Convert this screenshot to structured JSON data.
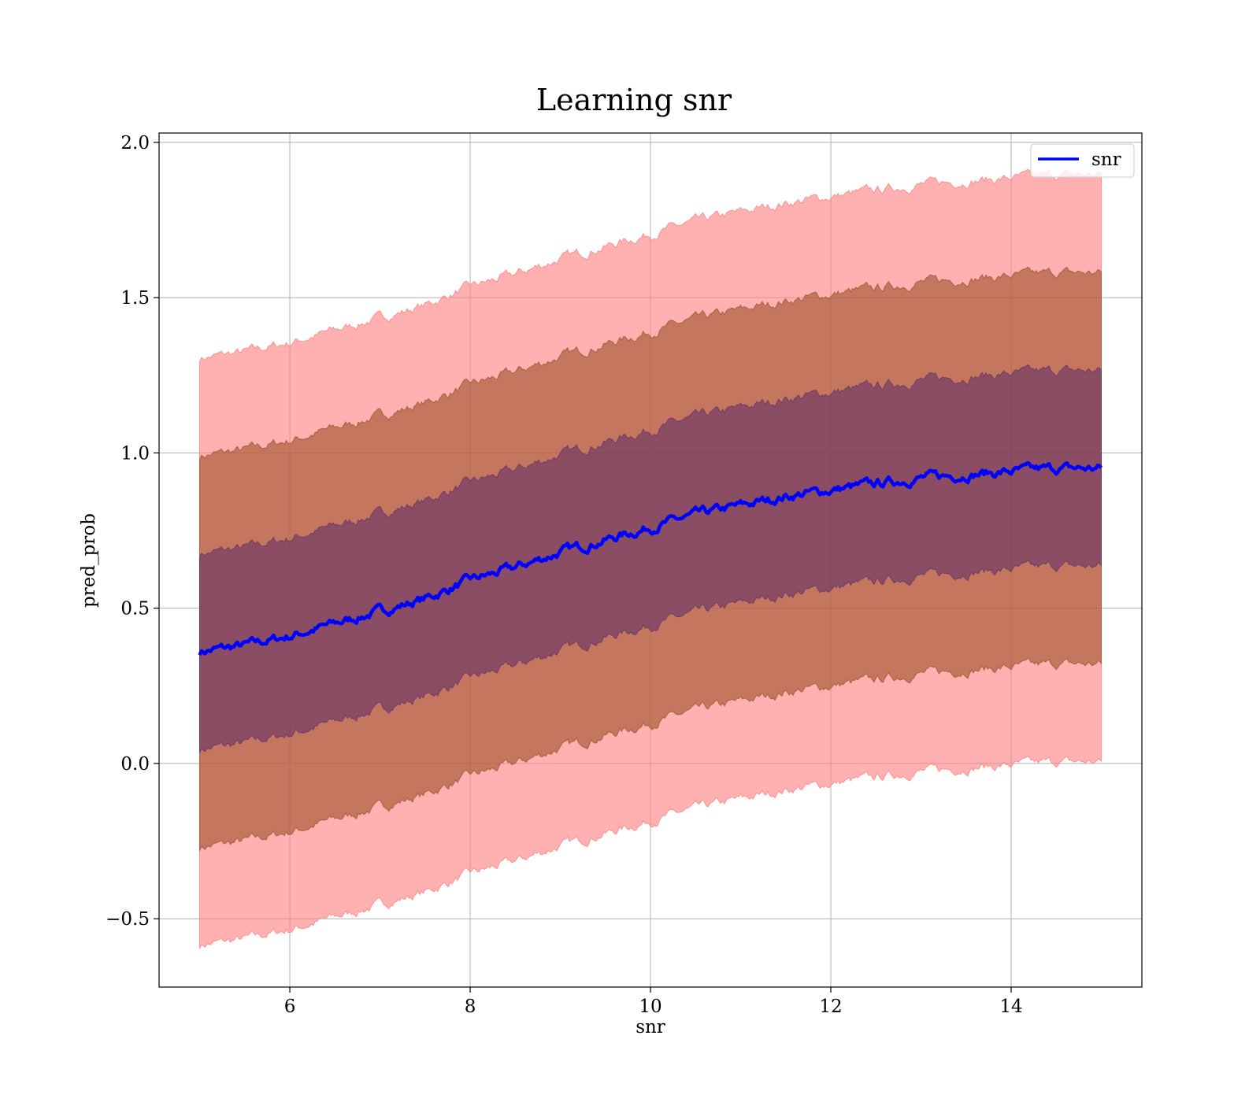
{
  "chart_data": {
    "type": "line",
    "title": "Learning snr",
    "xlabel": "snr",
    "ylabel": "pred_prob",
    "xlim": [
      4.55,
      15.45
    ],
    "ylim": [
      -0.72,
      2.03
    ],
    "xticks": [
      {
        "value": 6,
        "label": "6"
      },
      {
        "value": 8,
        "label": "8"
      },
      {
        "value": 10,
        "label": "10"
      },
      {
        "value": 12,
        "label": "12"
      },
      {
        "value": 14,
        "label": "14"
      }
    ],
    "yticks": [
      {
        "value": -0.5,
        "label": "−0.5"
      },
      {
        "value": 0.0,
        "label": "0.0"
      },
      {
        "value": 0.5,
        "label": "0.5"
      },
      {
        "value": 1.0,
        "label": "1.0"
      },
      {
        "value": 1.5,
        "label": "1.5"
      },
      {
        "value": 2.0,
        "label": "2.0"
      }
    ],
    "grid": true,
    "legend": {
      "position": "top-right",
      "entries": [
        "snr"
      ]
    },
    "series": [
      {
        "name": "snr",
        "color": "#0000ff",
        "x": [
          5.0,
          5.5,
          6.0,
          6.5,
          7.0,
          7.5,
          8.0,
          8.5,
          9.0,
          9.5,
          10.0,
          10.5,
          11.0,
          11.5,
          12.0,
          12.5,
          13.0,
          13.5,
          14.0,
          14.5,
          15.0
        ],
        "y": [
          0.36,
          0.38,
          0.41,
          0.45,
          0.49,
          0.53,
          0.59,
          0.63,
          0.68,
          0.72,
          0.76,
          0.8,
          0.83,
          0.86,
          0.88,
          0.9,
          0.92,
          0.93,
          0.94,
          0.95,
          0.95
        ]
      }
    ],
    "bands": [
      {
        "label": "±3σ",
        "color": "#ff8080",
        "sigma_mult": 3
      },
      {
        "label": "±2σ",
        "color": "#a0522d",
        "sigma_mult": 2
      },
      {
        "label": "±1σ",
        "color": "#663366",
        "sigma_mult": 1
      }
    ],
    "band_sigma": 0.315
  }
}
